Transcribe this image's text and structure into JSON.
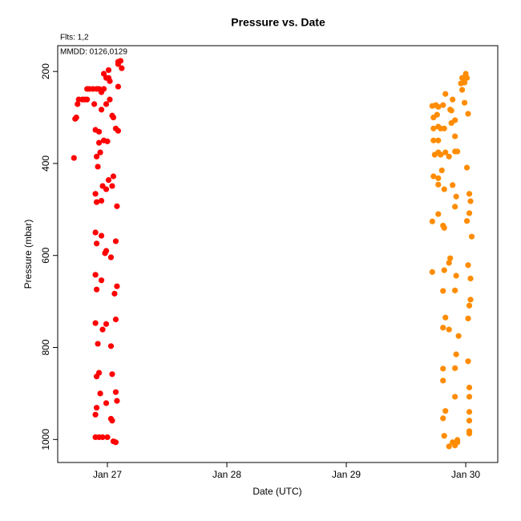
{
  "chart_data": {
    "type": "scatter",
    "title": "Pressure  vs. Date",
    "subtitle": "Flts: 1,2",
    "annotation": "MMDD: 0126,0129",
    "x_label": "Date (UTC)",
    "y_label": "Pressure (mbar)",
    "xlim": [
      26.584,
      30.268
    ],
    "ylim": [
      1050,
      144
    ],
    "y_reversed": true,
    "xticks": [
      {
        "value": 27,
        "label": "Jan 27"
      },
      {
        "value": 28,
        "label": "Jan 28"
      },
      {
        "value": 29,
        "label": "Jan 29"
      },
      {
        "value": 30,
        "label": "Jan 30"
      }
    ],
    "yticks": [
      200,
      400,
      600,
      800,
      1000
    ],
    "grid": false,
    "series": [
      {
        "color": "#ff0000",
        "x": [
          26.72,
          26.73,
          26.74,
          26.75,
          26.76,
          26.79,
          26.81,
          26.83,
          26.83,
          26.85,
          26.88,
          26.91,
          26.93,
          26.89,
          26.9,
          26.93,
          26.91,
          26.92,
          26.9,
          26.91,
          26.9,
          26.91,
          26.9,
          26.91,
          26.9,
          26.92,
          26.91,
          26.93,
          26.91,
          26.9,
          26.9,
          26.93,
          26.95,
          26.95,
          26.93,
          26.94,
          26.95,
          26.95,
          26.95,
          26.96,
          26.94,
          26.96,
          26.97,
          26.99,
          26.97,
          27.0,
          26.96,
          26.99,
          26.97,
          26.99,
          26.99,
          26.98,
          26.99,
          26.99,
          27.0,
          27.01,
          27.02,
          27.02,
          27.01,
          27.01,
          27.03,
          27.04,
          27.05,
          27.04,
          27.05,
          27.03,
          27.04,
          27.03,
          27.04,
          27.05,
          27.07,
          27.06,
          27.08,
          27.07,
          27.07,
          27.07,
          27.09,
          27.09,
          27.08,
          27.07,
          27.08,
          27.09,
          27.11,
          27.12,
          27.09
        ],
        "values": [
          388,
          303,
          300,
          271,
          261,
          261,
          261,
          261,
          238,
          238,
          238,
          238,
          238,
          271,
          327,
          331,
          385,
          407,
          466,
          484,
          550,
          574,
          642,
          674,
          747,
          792,
          863,
          855,
          931,
          946,
          995,
          995,
          245,
          283,
          355,
          376,
          481,
          557,
          654,
          761,
          900,
          995,
          238,
          271,
          350,
          352,
          449,
          456,
          205,
          214,
          590,
          595,
          749,
          921,
          995,
          197,
          221,
          261,
          214,
          436,
          604,
          296,
          300,
          449,
          428,
          797,
          858,
          955,
          959,
          1004,
          1006,
          683,
          667,
          739,
          569,
          324,
          329,
          233,
          493,
          897,
          916,
          179,
          177,
          193,
          184
        ]
      },
      {
        "color": "#ff8c00",
        "x": [
          29.72,
          29.75,
          29.77,
          29.81,
          29.73,
          29.76,
          29.73,
          29.77,
          29.79,
          29.82,
          29.73,
          29.77,
          29.74,
          29.77,
          29.79,
          29.83,
          29.86,
          29.73,
          29.77,
          29.77,
          29.82,
          29.8,
          29.72,
          29.77,
          29.81,
          29.82,
          29.72,
          29.82,
          29.81,
          29.81,
          29.83,
          29.86,
          29.81,
          29.81,
          29.81,
          29.83,
          29.82,
          29.86,
          29.89,
          29.91,
          29.93,
          29.93,
          29.83,
          29.89,
          29.87,
          29.88,
          29.88,
          29.91,
          29.91,
          29.91,
          29.93,
          29.89,
          29.91,
          29.92,
          29.87,
          29.86,
          29.92,
          29.91,
          29.94,
          29.92,
          29.91,
          29.91,
          29.97,
          29.99,
          29.96,
          30.0,
          30.01,
          29.97,
          30.02,
          29.99,
          30.01,
          30.03,
          30.04,
          30.01,
          30.03,
          30.05,
          30.02,
          30.04,
          30.04,
          30.03,
          30.02,
          30.02,
          30.03,
          30.03,
          30.03,
          30.03,
          30.03,
          30.03
        ],
        "values": [
          275,
          273,
          277,
          273,
          300,
          294,
          324,
          320,
          324,
          324,
          350,
          350,
          381,
          376,
          381,
          376,
          385,
          428,
          432,
          446,
          456,
          415,
          526,
          510,
          535,
          540,
          636,
          632,
          677,
          757,
          735,
          761,
          846,
          872,
          954,
          938,
          992,
          1015,
          1006,
          1013,
          1006,
          1001,
          249,
          261,
          283,
          285,
          312,
          306,
          341,
          374,
          374,
          447,
          494,
          472,
          606,
          616,
          644,
          676,
          775,
          815,
          845,
          907,
          214,
          224,
          226,
          205,
          214,
          240,
          292,
          268,
          409,
          466,
          482,
          525,
          508,
          559,
          621,
          650,
          696,
          709,
          737,
          830,
          887,
          907,
          940,
          959,
          982,
          987
        ]
      }
    ]
  }
}
